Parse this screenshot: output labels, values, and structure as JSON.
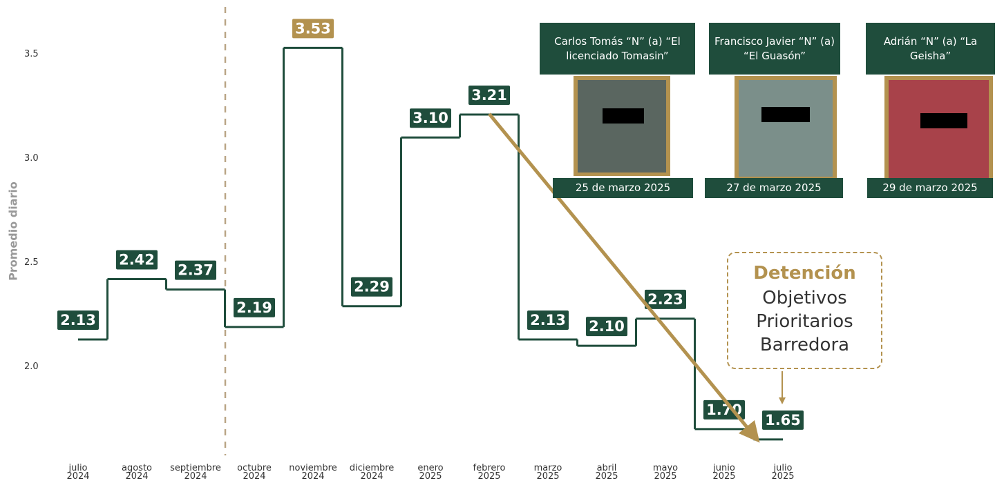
{
  "chart_data": {
    "type": "step",
    "y_axis_label": "Promedio diario",
    "categories": [
      "julio\n2024",
      "agosto\n2024",
      "septiembre\n2024",
      "octubre\n2024",
      "noviembre\n2024",
      "diciembre\n2024",
      "enero\n2025",
      "febrero\n2025",
      "marzo\n2025",
      "abril\n2025",
      "mayo\n2025",
      "junio\n2025",
      "julio\n2025"
    ],
    "values": [
      2.13,
      2.42,
      2.37,
      2.19,
      3.53,
      2.29,
      3.1,
      3.21,
      2.13,
      2.1,
      2.23,
      1.7,
      1.65
    ],
    "value_labels": [
      "2.13",
      "2.42",
      "2.37",
      "2.19",
      "3.53",
      "2.29",
      "3.10",
      "3.21",
      "2.13",
      "2.10",
      "2.23",
      "1.70",
      "1.65"
    ],
    "color": "#1f4d3c",
    "highlight_color": "#b3924f",
    "ylim": [
      1.6,
      3.76
    ],
    "yticks": [
      {
        "value": 2,
        "label": "2.0"
      },
      {
        "value": 2.5,
        "label": "2.5"
      },
      {
        "value": 3,
        "label": "3.0"
      },
      {
        "value": 3.5,
        "label": "3.5"
      }
    ],
    "grid": false,
    "detainees": [
      {
        "name": "Carlos Tomás “N” (a) “El licenciado Tomasin”",
        "date": "25 de marzo 2025"
      },
      {
        "name": "Francisco Javier “N” (a) “El Guasón”",
        "date": "27 de marzo 2025"
      },
      {
        "name": "Adrián “N” (a) “La Geisha”",
        "date": "29 de marzo 2025"
      }
    ],
    "callout": {
      "title": "Detención",
      "text": "Objetivos Prioritarios Barredora"
    }
  }
}
